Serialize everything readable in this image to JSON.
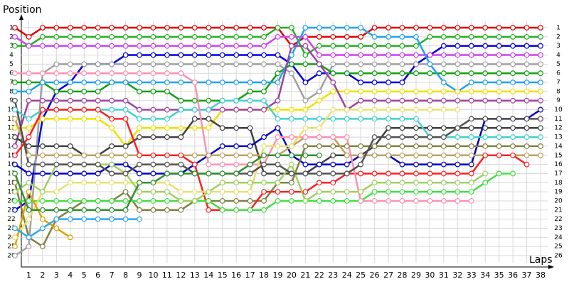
{
  "chart_data": {
    "type": "line",
    "title": "Position",
    "x_label": "Laps",
    "x": [
      0,
      1,
      2,
      3,
      4,
      5,
      6,
      7,
      8,
      9,
      10,
      11,
      12,
      13,
      14,
      15,
      16,
      17,
      18,
      19,
      20,
      21,
      22,
      23,
      24,
      25,
      26,
      27,
      28,
      29,
      30,
      31,
      32,
      33,
      34,
      35,
      36,
      37,
      38
    ],
    "xlim": [
      0,
      38
    ],
    "xticks": [
      1,
      2,
      3,
      4,
      5,
      6,
      7,
      8,
      9,
      10,
      11,
      12,
      13,
      14,
      15,
      16,
      17,
      18,
      19,
      20,
      21,
      22,
      23,
      24,
      25,
      26,
      27,
      28,
      29,
      30,
      31,
      32,
      33,
      34,
      35,
      36,
      37,
      38
    ],
    "ylim": [
      1,
      26
    ],
    "yticks": [
      1,
      2,
      3,
      4,
      5,
      6,
      7,
      8,
      9,
      10,
      11,
      12,
      13,
      14,
      15,
      16,
      17,
      18,
      19,
      20,
      21,
      22,
      23,
      24,
      25,
      26
    ],
    "y_inverted": true,
    "grid": true,
    "series": [
      {
        "color": "#e00000",
        "values": [
          1,
          2,
          1,
          1,
          1,
          1,
          1,
          1,
          1,
          1,
          1,
          1,
          1,
          1,
          1,
          1,
          1,
          1,
          1,
          1,
          3,
          2,
          2,
          2,
          2,
          2,
          1,
          1,
          1,
          1,
          1,
          1,
          1,
          1,
          1,
          1,
          1,
          1,
          1
        ]
      },
      {
        "color": "#20b020",
        "values": [
          3,
          3,
          2,
          2,
          2,
          2,
          2,
          2,
          2,
          2,
          2,
          2,
          2,
          2,
          2,
          2,
          2,
          2,
          2,
          1,
          1,
          4,
          3,
          3,
          3,
          3,
          3,
          3,
          3,
          3,
          2,
          2,
          2,
          2,
          2,
          2,
          2,
          2,
          2
        ]
      },
      {
        "color": "#0000e0",
        "values": [
          21,
          20,
          11,
          8,
          7,
          5,
          5,
          5,
          4,
          4,
          4,
          4,
          4,
          4,
          4,
          4,
          4,
          4,
          4,
          4,
          5,
          7,
          6,
          6,
          6,
          7,
          7,
          7,
          7,
          5,
          4,
          3,
          3,
          3,
          3,
          3,
          3,
          3,
          3
        ]
      },
      {
        "color": "#d040f0",
        "values": [
          2,
          3,
          3,
          3,
          3,
          3,
          3,
          3,
          3,
          3,
          3,
          3,
          3,
          3,
          3,
          3,
          3,
          3,
          3,
          2,
          2,
          2,
          4,
          4,
          4,
          4,
          4,
          4,
          4,
          4,
          4,
          4,
          4,
          4,
          4,
          4,
          4,
          4,
          4
        ]
      },
      {
        "color": "#a0a0a0",
        "values": [
          26,
          25,
          6,
          5,
          5,
          5,
          5,
          5,
          5,
          5,
          5,
          5,
          5,
          5,
          5,
          5,
          5,
          5,
          5,
          5,
          6,
          9,
          8,
          5,
          5,
          5,
          5,
          5,
          5,
          5,
          5,
          5,
          5,
          5,
          5,
          5,
          5,
          5,
          5
        ]
      },
      {
        "color": "#10a010",
        "values": [
          7,
          7,
          7,
          8,
          8,
          8,
          8,
          7,
          7,
          8,
          8,
          8,
          9,
          9,
          9,
          9,
          9,
          8,
          8,
          6,
          5,
          5,
          5,
          6,
          6,
          6,
          6,
          6,
          6,
          6,
          6,
          6,
          6,
          6,
          6,
          6,
          6,
          6,
          6
        ]
      },
      {
        "color": "#20a0f0",
        "values": [
          8,
          8,
          7,
          7,
          7,
          7,
          7,
          7,
          7,
          7,
          7,
          7,
          7,
          7,
          7,
          7,
          7,
          7,
          7,
          7,
          4,
          1,
          1,
          1,
          1,
          1,
          2,
          2,
          2,
          2,
          5,
          7,
          8,
          7,
          7,
          7,
          7,
          7,
          7
        ]
      },
      {
        "color": "#f0e000",
        "values": [
          12,
          12,
          11,
          11,
          11,
          11,
          11,
          12,
          14,
          12,
          12,
          12,
          12,
          12,
          12,
          10,
          10,
          10,
          10,
          10,
          10,
          10,
          9,
          8,
          8,
          8,
          8,
          8,
          8,
          8,
          8,
          8,
          8,
          8,
          8,
          8,
          8,
          8,
          8
        ]
      },
      {
        "color": "#a040a0",
        "values": [
          14,
          9,
          9,
          9,
          9,
          9,
          9,
          9,
          9,
          10,
          10,
          10,
          10,
          10,
          10,
          10,
          10,
          10,
          10,
          9,
          3,
          3,
          5,
          7,
          10,
          9,
          9,
          9,
          9,
          9,
          9,
          9,
          9,
          9,
          9,
          9,
          9,
          9,
          9
        ]
      },
      {
        "color": "#404040",
        "values": [
          13,
          14,
          14,
          14,
          14,
          15,
          15,
          14,
          14,
          13,
          13,
          13,
          13,
          11,
          11,
          12,
          12,
          12,
          17,
          17,
          17,
          17,
          16,
          15,
          15,
          15,
          14,
          12,
          12,
          12,
          12,
          12,
          12,
          12,
          12,
          12,
          12,
          12,
          12
        ]
      },
      {
        "color": "#0000c0",
        "values": [
          16,
          17,
          17,
          17,
          17,
          17,
          17,
          16,
          16,
          17,
          17,
          17,
          17,
          16,
          15,
          14,
          14,
          14,
          13,
          12,
          15,
          16,
          16,
          16,
          16,
          15,
          15,
          15,
          16,
          16,
          16,
          16,
          16,
          16,
          11,
          11,
          11,
          11,
          10
        ]
      },
      {
        "color": "#40d0d0",
        "values": [
          10,
          11,
          10,
          10,
          10,
          10,
          10,
          10,
          10,
          11,
          11,
          11,
          10,
          10,
          10,
          9,
          9,
          9,
          9,
          11,
          11,
          11,
          11,
          11,
          11,
          11,
          11,
          11,
          11,
          11,
          13,
          13,
          13,
          13,
          13,
          13,
          13,
          13,
          13
        ]
      },
      {
        "color": "#808040",
        "values": [
          18,
          24,
          25,
          22,
          21,
          20,
          20,
          20,
          19,
          21,
          21,
          21,
          21,
          20,
          20,
          20,
          20,
          20,
          20,
          18,
          18,
          14,
          14,
          14,
          14,
          14,
          14,
          14,
          14,
          14,
          14,
          14,
          14,
          14,
          14,
          14,
          14,
          14,
          14
        ]
      },
      {
        "color": "#c0a060",
        "values": [
          11,
          15,
          15,
          15,
          15,
          15,
          15,
          15,
          15,
          15,
          15,
          15,
          15,
          15,
          15,
          15,
          15,
          15,
          15,
          15,
          14,
          13,
          13,
          13,
          15,
          15,
          15,
          15,
          15,
          15,
          15,
          15,
          15,
          15,
          15,
          15,
          15,
          15,
          15
        ]
      },
      {
        "color": "#ff2020",
        "values": [
          15,
          13,
          10,
          10,
          10,
          10,
          10,
          11,
          11,
          15,
          15,
          15,
          15,
          16,
          21,
          21,
          21,
          21,
          19,
          19,
          19,
          19,
          18,
          18,
          17,
          17,
          17,
          17,
          17,
          17,
          17,
          17,
          17,
          17,
          15,
          15,
          15,
          16,
          null
        ]
      },
      {
        "color": "#40e040",
        "values": [
          20,
          20,
          20,
          20,
          20,
          20,
          20,
          20,
          20,
          20,
          20,
          20,
          20,
          20,
          20,
          21,
          21,
          21,
          21,
          20,
          20,
          20,
          20,
          20,
          20,
          20,
          19,
          19,
          19,
          19,
          19,
          19,
          19,
          19,
          18,
          17,
          17,
          null,
          null
        ]
      },
      {
        "color": "#ff90b0",
        "values": [
          6,
          6,
          6,
          6,
          6,
          6,
          6,
          6,
          6,
          6,
          6,
          6,
          6,
          7,
          16,
          16,
          16,
          16,
          16,
          13,
          13,
          13,
          13,
          13,
          13,
          20,
          20,
          20,
          20,
          20,
          20,
          20,
          20,
          20,
          null,
          null,
          null,
          null,
          null
        ]
      },
      {
        "color": "#e8e070",
        "values": [
          24,
          22,
          19,
          19,
          18,
          18,
          18,
          18,
          18,
          18,
          18,
          18,
          19,
          19,
          19,
          19,
          19,
          19,
          14,
          14,
          14,
          12,
          12,
          10,
          10,
          10,
          10,
          10,
          10,
          10,
          10,
          10,
          10,
          null,
          null,
          null,
          null,
          null,
          null
        ]
      },
      {
        "color": "#a0d060",
        "values": [
          19,
          18,
          19,
          16,
          16,
          16,
          16,
          16,
          17,
          19,
          19,
          19,
          20,
          20,
          19,
          18,
          18,
          18,
          18,
          18,
          16,
          20,
          19,
          19,
          19,
          19,
          18,
          18,
          18,
          18,
          18,
          18,
          18,
          18,
          17,
          null,
          null,
          null,
          null
        ]
      },
      {
        "color": "#505050",
        "values": [
          9,
          16,
          16,
          16,
          16,
          16,
          16,
          17,
          17,
          16,
          16,
          16,
          16,
          17,
          17,
          17,
          17,
          17,
          16,
          16,
          17,
          17,
          17,
          17,
          17,
          16,
          13,
          13,
          13,
          13,
          13,
          13,
          12,
          11,
          11,
          11,
          11,
          11,
          11
        ]
      },
      {
        "color": "#e0a000",
        "values": [
          25,
          19,
          22,
          23,
          24,
          null,
          null,
          null,
          null,
          null,
          null,
          null,
          null,
          null,
          null,
          null,
          null,
          null,
          null,
          null,
          null,
          null,
          null,
          null,
          null,
          null,
          null,
          null,
          null,
          null,
          null,
          null,
          null,
          null,
          null,
          null,
          null,
          null,
          null
        ]
      },
      {
        "color": "#30a8f0",
        "values": [
          23,
          24,
          23,
          22,
          22,
          22,
          22,
          22,
          22,
          22,
          null,
          null,
          null,
          null,
          null,
          null,
          null,
          null,
          null,
          null,
          null,
          null,
          null,
          null,
          null,
          null,
          null,
          null,
          null,
          null,
          null,
          null,
          null,
          null,
          null,
          null,
          null,
          null,
          null
        ]
      },
      {
        "color": "#309030",
        "values": [
          17,
          21,
          21,
          21,
          21,
          21,
          21,
          21,
          21,
          18,
          18,
          17,
          17,
          17,
          17,
          17,
          17,
          16,
          15,
          15,
          15,
          15,
          15,
          null,
          null,
          null,
          null,
          null,
          null,
          null,
          null,
          null,
          null,
          null,
          null,
          null,
          null,
          null,
          null
        ]
      }
    ]
  }
}
